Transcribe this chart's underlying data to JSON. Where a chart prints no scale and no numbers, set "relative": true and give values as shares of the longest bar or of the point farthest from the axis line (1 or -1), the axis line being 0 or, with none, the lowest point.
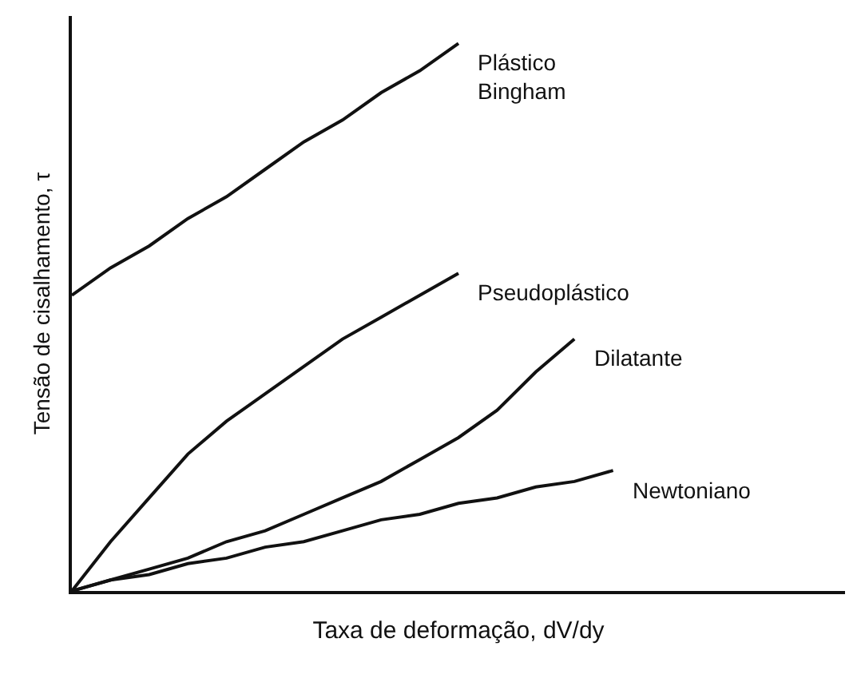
{
  "chart_data": {
    "type": "line",
    "relative": true,
    "xlabel": "Taxa de deformação, dV/dy",
    "ylabel": "Tensão de cisalhamento, τ",
    "tick_labels": false,
    "legend": false,
    "marker": "none",
    "line_style": "solid",
    "categories": [
      null,
      null,
      null,
      null,
      null,
      null,
      null,
      null,
      null,
      null,
      null,
      null,
      null,
      null,
      null,
      null,
      null,
      null,
      null,
      null,
      null
    ],
    "series": [
      {
        "name": "Plástico\nBingham",
        "color": "#111111",
        "values": [
          0.54,
          0.59,
          0.63,
          0.68,
          0.72,
          0.77,
          0.82,
          0.86,
          0.91,
          0.95,
          1,
          null,
          null,
          null,
          null,
          null,
          null,
          null,
          null,
          null,
          null
        ]
      },
      {
        "name": "Pseudoplástico",
        "color": "#111111",
        "values": [
          0,
          0.09,
          0.17,
          0.25,
          0.31,
          0.36,
          0.41,
          0.46,
          0.5,
          0.54,
          0.58,
          null,
          null,
          null,
          null,
          null,
          null,
          null,
          null,
          null,
          null
        ]
      },
      {
        "name": "Dilatante",
        "color": "#111111",
        "values": [
          0,
          0.02,
          0.04,
          0.06,
          0.09,
          0.11,
          0.14,
          0.17,
          0.2,
          0.24,
          0.28,
          0.33,
          0.4,
          0.46,
          null,
          null,
          null,
          null,
          null,
          null,
          null
        ]
      },
      {
        "name": "Newtoniano",
        "color": "#111111",
        "values": [
          0,
          0.02,
          0.03,
          0.05,
          0.06,
          0.08,
          0.09,
          0.11,
          0.13,
          0.14,
          0.16,
          0.17,
          0.19,
          0.2,
          0.22,
          null,
          null,
          null,
          null,
          null,
          null
        ]
      }
    ]
  }
}
